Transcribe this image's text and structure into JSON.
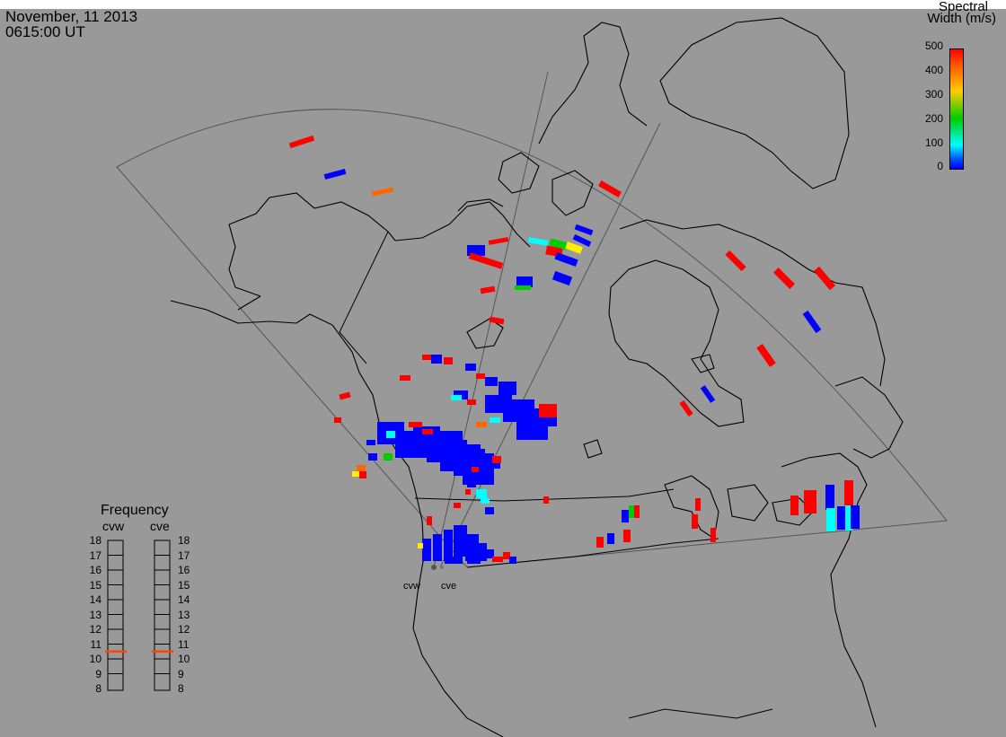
{
  "header": {
    "date": "November, 11 2013",
    "time": "0615:00 UT"
  },
  "colorbar": {
    "title_line1": "Spectral",
    "title_line2": "Width (m/s)",
    "ticks": [
      "500",
      "400",
      "300",
      "200",
      "100",
      "0"
    ],
    "colors": [
      "#0000ff",
      "#00aaff",
      "#00ffff",
      "#00cc00",
      "#ffee00",
      "#ff8800",
      "#ff0000"
    ]
  },
  "frequency_panel": {
    "title": "Frequency",
    "left_label": "cvw",
    "right_label": "cve",
    "scale": [
      "18",
      "17",
      "16",
      "15",
      "14",
      "13",
      "12",
      "11",
      "10",
      "9",
      "8"
    ],
    "cvw_frequency": 10.5,
    "cve_frequency": 10.5,
    "marker_color": "#ff4400"
  },
  "sites": {
    "west": "cvw",
    "east": "cve"
  },
  "colors": {
    "background": "#999999",
    "outline": "#000000",
    "fov": "#555555"
  }
}
